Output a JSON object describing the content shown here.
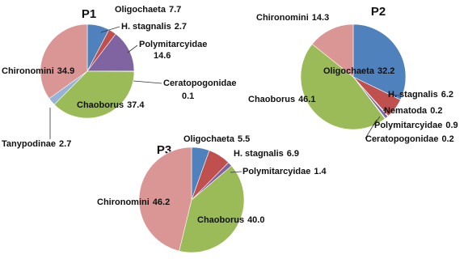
{
  "chart_data": [
    {
      "type": "pie",
      "title": "P1",
      "categories": [
        "Oligochaeta",
        "H. stagnalis",
        "Polymitarcyidae",
        "Ceratopogonidae",
        "Chaoborus",
        "Tanypodinae",
        "Chironomini"
      ],
      "values": [
        7.7,
        2.7,
        14.6,
        0.1,
        37.4,
        2.7,
        34.9
      ],
      "colors": [
        "#4f81bd",
        "#c0504d",
        "#8064a2",
        "#4bacc6",
        "#9bbb59",
        "#95b3d7",
        "#d99694"
      ]
    },
    {
      "type": "pie",
      "title": "P2",
      "categories": [
        "Oligochaeta",
        "H. stagnalis",
        "Nematoda",
        "Polymitarcyidae",
        "Ceratopogonidae",
        "Chaoborus",
        "Chironomini"
      ],
      "values": [
        32.2,
        6.2,
        0.2,
        0.9,
        0.2,
        46.1,
        14.3
      ],
      "colors": [
        "#4f81bd",
        "#c0504d",
        "#f79646",
        "#8064a2",
        "#4bacc6",
        "#9bbb59",
        "#d99694"
      ]
    },
    {
      "type": "pie",
      "title": "P3",
      "categories": [
        "Oligochaeta",
        "H. stagnalis",
        "Polymitarcyidae",
        "Chaoborus",
        "Chironomini"
      ],
      "values": [
        5.5,
        6.9,
        1.4,
        40,
        46.2
      ],
      "value_labels": [
        "5.5",
        "6.9",
        "1.4",
        "40.0",
        "46.2"
      ],
      "colors": [
        "#4f81bd",
        "#c0504d",
        "#8064a2",
        "#9bbb59",
        "#d99694"
      ]
    }
  ]
}
